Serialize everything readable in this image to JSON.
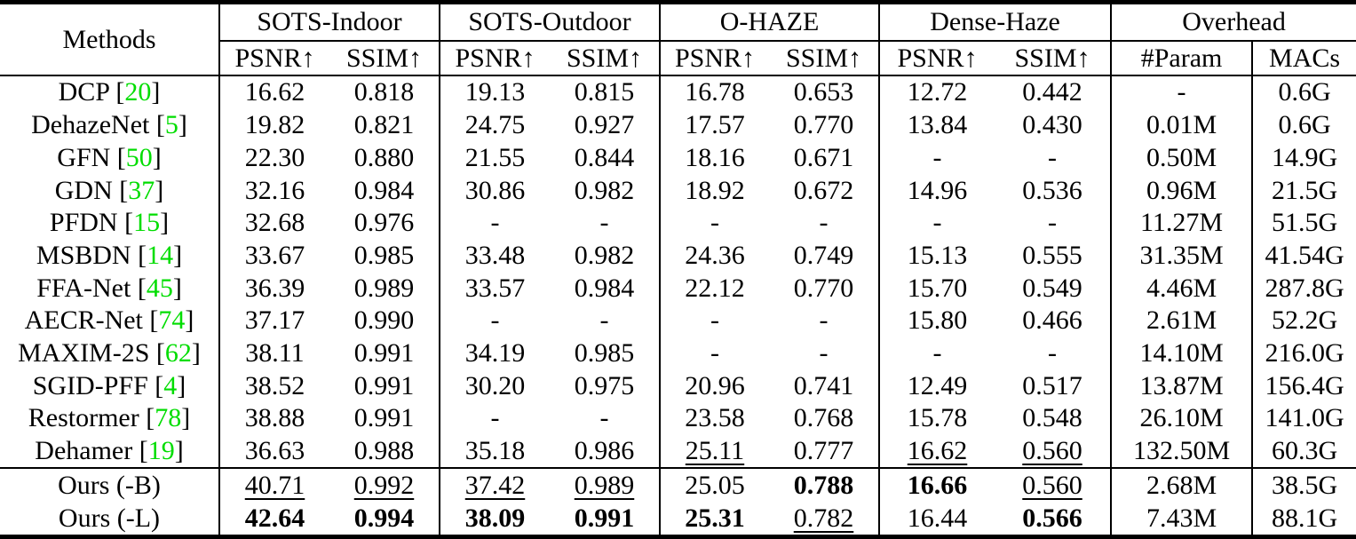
{
  "table": {
    "header_methods": "Methods",
    "groups": [
      "SOTS-Indoor",
      "SOTS-Outdoor",
      "O-HAZE",
      "Dense-Haze",
      "Overhead"
    ],
    "sub_headers": [
      "PSNR↑",
      "SSIM↑",
      "PSNR↑",
      "SSIM↑",
      "PSNR↑",
      "SSIM↑",
      "PSNR↑",
      "SSIM↑",
      "#Param",
      "MACs"
    ],
    "citation_color": "#00dd00",
    "cite_open": "[",
    "cite_close": "]",
    "rows": [
      {
        "section": "main",
        "method": "DCP",
        "ref": "20",
        "values": [
          {
            "t": "16.62"
          },
          {
            "t": "0.818"
          },
          {
            "t": "19.13"
          },
          {
            "t": "0.815"
          },
          {
            "t": "16.78"
          },
          {
            "t": "0.653"
          },
          {
            "t": "12.72"
          },
          {
            "t": "0.442"
          },
          {
            "t": "-"
          },
          {
            "t": "0.6G"
          }
        ]
      },
      {
        "section": "main",
        "method": "DehazeNet",
        "ref": "5",
        "values": [
          {
            "t": "19.82"
          },
          {
            "t": "0.821"
          },
          {
            "t": "24.75"
          },
          {
            "t": "0.927"
          },
          {
            "t": "17.57"
          },
          {
            "t": "0.770"
          },
          {
            "t": "13.84"
          },
          {
            "t": "0.430"
          },
          {
            "t": "0.01M"
          },
          {
            "t": "0.6G"
          }
        ]
      },
      {
        "section": "main",
        "method": "GFN",
        "ref": "50",
        "values": [
          {
            "t": "22.30"
          },
          {
            "t": "0.880"
          },
          {
            "t": "21.55"
          },
          {
            "t": "0.844"
          },
          {
            "t": "18.16"
          },
          {
            "t": "0.671"
          },
          {
            "t": "-"
          },
          {
            "t": "-"
          },
          {
            "t": "0.50M"
          },
          {
            "t": "14.9G"
          }
        ]
      },
      {
        "section": "main",
        "method": "GDN",
        "ref": "37",
        "values": [
          {
            "t": "32.16"
          },
          {
            "t": "0.984"
          },
          {
            "t": "30.86"
          },
          {
            "t": "0.982"
          },
          {
            "t": "18.92"
          },
          {
            "t": "0.672"
          },
          {
            "t": "14.96"
          },
          {
            "t": "0.536"
          },
          {
            "t": "0.96M"
          },
          {
            "t": "21.5G"
          }
        ]
      },
      {
        "section": "main",
        "method": "PFDN",
        "ref": "15",
        "values": [
          {
            "t": "32.68"
          },
          {
            "t": "0.976"
          },
          {
            "t": "-"
          },
          {
            "t": "-"
          },
          {
            "t": "-"
          },
          {
            "t": "-"
          },
          {
            "t": "-"
          },
          {
            "t": "-"
          },
          {
            "t": "11.27M"
          },
          {
            "t": "51.5G"
          }
        ]
      },
      {
        "section": "main",
        "method": "MSBDN",
        "ref": "14",
        "values": [
          {
            "t": "33.67"
          },
          {
            "t": "0.985"
          },
          {
            "t": "33.48"
          },
          {
            "t": "0.982"
          },
          {
            "t": "24.36"
          },
          {
            "t": "0.749"
          },
          {
            "t": "15.13"
          },
          {
            "t": "0.555"
          },
          {
            "t": "31.35M"
          },
          {
            "t": "41.54G"
          }
        ]
      },
      {
        "section": "main",
        "method": "FFA-Net",
        "ref": "45",
        "values": [
          {
            "t": "36.39"
          },
          {
            "t": "0.989"
          },
          {
            "t": "33.57"
          },
          {
            "t": "0.984"
          },
          {
            "t": "22.12"
          },
          {
            "t": "0.770"
          },
          {
            "t": "15.70"
          },
          {
            "t": "0.549"
          },
          {
            "t": "4.46M"
          },
          {
            "t": "287.8G"
          }
        ]
      },
      {
        "section": "main",
        "method": "AECR-Net",
        "ref": "74",
        "values": [
          {
            "t": "37.17"
          },
          {
            "t": "0.990"
          },
          {
            "t": "-"
          },
          {
            "t": "-"
          },
          {
            "t": "-"
          },
          {
            "t": "-"
          },
          {
            "t": "15.80"
          },
          {
            "t": "0.466"
          },
          {
            "t": "2.61M"
          },
          {
            "t": "52.2G"
          }
        ]
      },
      {
        "section": "main",
        "method": "MAXIM-2S",
        "ref": "62",
        "values": [
          {
            "t": "38.11"
          },
          {
            "t": "0.991"
          },
          {
            "t": "34.19"
          },
          {
            "t": "0.985"
          },
          {
            "t": "-"
          },
          {
            "t": "-"
          },
          {
            "t": "-"
          },
          {
            "t": "-"
          },
          {
            "t": "14.10M"
          },
          {
            "t": "216.0G"
          }
        ]
      },
      {
        "section": "main",
        "method": "SGID-PFF",
        "ref": "4",
        "values": [
          {
            "t": "38.52"
          },
          {
            "t": "0.991"
          },
          {
            "t": "30.20"
          },
          {
            "t": "0.975"
          },
          {
            "t": "20.96"
          },
          {
            "t": "0.741"
          },
          {
            "t": "12.49"
          },
          {
            "t": "0.517"
          },
          {
            "t": "13.87M"
          },
          {
            "t": "156.4G"
          }
        ]
      },
      {
        "section": "main",
        "method": "Restormer",
        "ref": "78",
        "values": [
          {
            "t": "38.88"
          },
          {
            "t": "0.991"
          },
          {
            "t": "-"
          },
          {
            "t": "-"
          },
          {
            "t": "23.58"
          },
          {
            "t": "0.768"
          },
          {
            "t": "15.78"
          },
          {
            "t": "0.548"
          },
          {
            "t": "26.10M"
          },
          {
            "t": "141.0G"
          }
        ]
      },
      {
        "section": "main",
        "method": "Dehamer",
        "ref": "19",
        "values": [
          {
            "t": "36.63"
          },
          {
            "t": "0.988"
          },
          {
            "t": "35.18"
          },
          {
            "t": "0.986"
          },
          {
            "t": "25.11",
            "s": "u"
          },
          {
            "t": "0.777"
          },
          {
            "t": "16.62",
            "s": "u"
          },
          {
            "t": "0.560",
            "s": "u"
          },
          {
            "t": "132.50M"
          },
          {
            "t": "60.3G"
          }
        ]
      },
      {
        "section": "ours",
        "method": "Ours (-B)",
        "ref": null,
        "values": [
          {
            "t": "40.71",
            "s": "u"
          },
          {
            "t": "0.992",
            "s": "u"
          },
          {
            "t": "37.42",
            "s": "u"
          },
          {
            "t": "0.989",
            "s": "u"
          },
          {
            "t": "25.05"
          },
          {
            "t": "0.788",
            "s": "b"
          },
          {
            "t": "16.66",
            "s": "b"
          },
          {
            "t": "0.560",
            "s": "u"
          },
          {
            "t": "2.68M"
          },
          {
            "t": "38.5G"
          }
        ]
      },
      {
        "section": "ours",
        "method": "Ours (-L)",
        "ref": null,
        "values": [
          {
            "t": "42.64",
            "s": "b"
          },
          {
            "t": "0.994",
            "s": "b"
          },
          {
            "t": "38.09",
            "s": "b"
          },
          {
            "t": "0.991",
            "s": "b"
          },
          {
            "t": "25.31",
            "s": "b"
          },
          {
            "t": "0.782",
            "s": "u"
          },
          {
            "t": "16.44"
          },
          {
            "t": "0.566",
            "s": "b"
          },
          {
            "t": "7.43M"
          },
          {
            "t": "88.1G"
          }
        ]
      }
    ]
  }
}
